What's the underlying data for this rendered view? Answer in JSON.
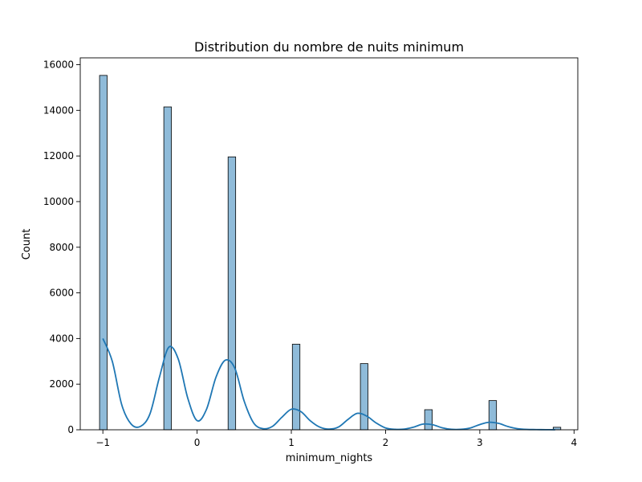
{
  "chart_data": {
    "type": "bar",
    "title": "Distribution du nombre de nuits minimum",
    "xlabel": "minimum_nights",
    "ylabel": "Count",
    "xlim": [
      -1.24,
      4.04
    ],
    "ylim": [
      0,
      16300
    ],
    "xticks": [
      -1,
      0,
      1,
      2,
      3,
      4
    ],
    "xtick_labels": [
      "−1",
      "0",
      "1",
      "2",
      "3",
      "4"
    ],
    "yticks": [
      0,
      2000,
      4000,
      6000,
      8000,
      10000,
      12000,
      14000,
      16000
    ],
    "ytick_labels": [
      "0",
      "2000",
      "4000",
      "6000",
      "8000",
      "10000",
      "12000",
      "14000",
      "16000"
    ],
    "bin_width": 0.0804,
    "bins": [
      {
        "x": -0.995,
        "count": 15530
      },
      {
        "x": -0.313,
        "count": 14150
      },
      {
        "x": 0.369,
        "count": 11960
      },
      {
        "x": 1.051,
        "count": 3750
      },
      {
        "x": 1.773,
        "count": 2900
      },
      {
        "x": 2.455,
        "count": 880
      },
      {
        "x": 3.137,
        "count": 1280
      },
      {
        "x": 3.819,
        "count": 110
      }
    ],
    "kde": {
      "x": [
        -1.0,
        -0.9,
        -0.8,
        -0.7,
        -0.6,
        -0.5,
        -0.4,
        -0.3,
        -0.2,
        -0.1,
        0.0,
        0.1,
        0.2,
        0.3,
        0.4,
        0.5,
        0.6,
        0.7,
        0.8,
        0.9,
        1.0,
        1.1,
        1.2,
        1.3,
        1.4,
        1.5,
        1.6,
        1.7,
        1.8,
        1.9,
        2.0,
        2.1,
        2.2,
        2.3,
        2.4,
        2.5,
        2.6,
        2.7,
        2.8,
        2.9,
        3.0,
        3.1,
        3.2,
        3.3,
        3.4,
        3.5,
        3.6,
        3.7,
        3.8
      ],
      "y": [
        4000,
        3000,
        1100,
        250,
        150,
        700,
        2300,
        3620,
        3100,
        1400,
        400,
        900,
        2300,
        3050,
        2700,
        1250,
        300,
        50,
        150,
        550,
        900,
        800,
        400,
        120,
        30,
        120,
        450,
        720,
        600,
        300,
        80,
        20,
        30,
        120,
        250,
        220,
        90,
        20,
        20,
        80,
        230,
        330,
        280,
        140,
        50,
        15,
        10,
        5,
        2
      ]
    },
    "colors": {
      "bar_fill": "#1f77b4",
      "bar_edge": "#000000",
      "kde_line": "#1f77b4"
    },
    "grid": false,
    "legend": "none"
  }
}
